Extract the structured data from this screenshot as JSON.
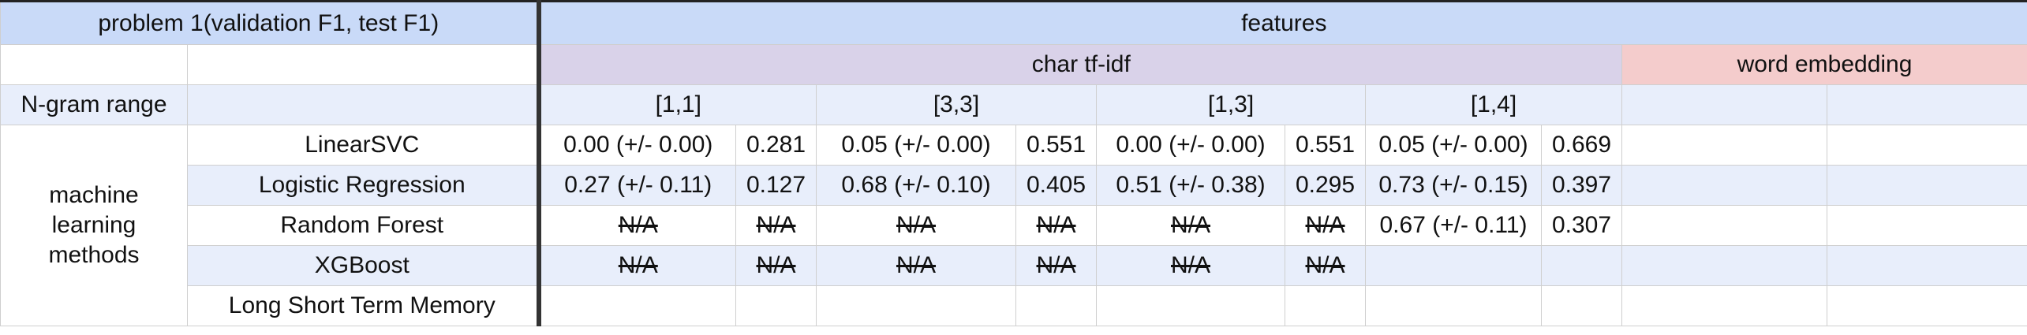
{
  "header": {
    "problem_title": "problem 1(validation F1, test F1)",
    "features_title": "features",
    "char_tfidf": "char tf-idf",
    "word_embedding": "word embedding",
    "ngram_label": "N-gram range",
    "ngram_ranges": [
      "[1,1]",
      "[3,3]",
      "[1,3]",
      "[1,4]"
    ]
  },
  "methods_group_label": "machine learning methods",
  "rows": [
    {
      "method": "LinearSVC",
      "cells": [
        "0.00 (+/- 0.00)",
        "0.281",
        "0.05 (+/- 0.00)",
        "0.551",
        "0.00 (+/- 0.00)",
        "0.551",
        "0.05 (+/- 0.00)",
        "0.669",
        "",
        ""
      ]
    },
    {
      "method": "Logistic Regression",
      "cells": [
        "0.27 (+/- 0.11)",
        "0.127",
        "0.68 (+/- 0.10)",
        "0.405",
        "0.51 (+/- 0.38)",
        "0.295",
        "0.73 (+/- 0.15)",
        "0.397",
        "",
        ""
      ]
    },
    {
      "method": "Random Forest",
      "cells": [
        "N/A",
        "N/A",
        "N/A",
        "N/A",
        "N/A",
        "N/A",
        "0.67 (+/- 0.11)",
        "0.307",
        "",
        ""
      ]
    },
    {
      "method": "XGBoost",
      "cells": [
        "N/A",
        "N/A",
        "N/A",
        "N/A",
        "N/A",
        "N/A",
        "",
        "",
        "",
        ""
      ]
    },
    {
      "method": "Long Short Term Memory",
      "cells": [
        "",
        "",
        "",
        "",
        "",
        "",
        "",
        "",
        "",
        ""
      ]
    }
  ],
  "colors": {
    "header_blue": "#c9daf8",
    "row_lightblue": "#e8eefb",
    "char_purple": "#d9d2e9",
    "word_pink": "#f4cccc"
  }
}
